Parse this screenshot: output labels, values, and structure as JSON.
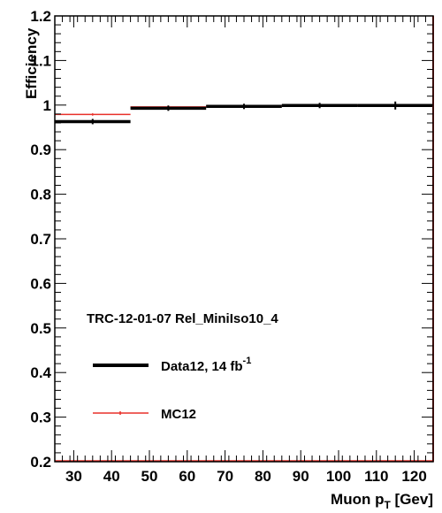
{
  "chart_data": {
    "type": "line",
    "plot_style": "binned-step-with-error-bars",
    "xlabel": "Muon p",
    "xlabel_sub": "T",
    "xlabel_unit": " [Gev]",
    "ylabel": "Efficiency",
    "xlim": [
      25,
      125
    ],
    "ylim": [
      0.2,
      1.2
    ],
    "x_ticks": [
      30,
      40,
      50,
      60,
      70,
      80,
      90,
      100,
      110,
      120
    ],
    "y_ticks": [
      0.2,
      0.3,
      0.4,
      0.5,
      0.6,
      0.7,
      0.8,
      0.9,
      1,
      1.1,
      1.2
    ],
    "y_tick_labels": [
      "0.2",
      "0.3",
      "0.4",
      "0.5",
      "0.6",
      "0.7",
      "0.8",
      "0.9",
      "1",
      "1.1",
      "1.2"
    ],
    "annotation": "TRC-12-01-07 Rel_MiniIso10_4",
    "legend_position": "bottom-left",
    "series": [
      {
        "name": "Data12, 14 fb",
        "name_sup": "-1",
        "color": "#000000",
        "bins": [
          {
            "x_low": 25,
            "x_high": 45,
            "value": 0.963,
            "error": 0.002
          },
          {
            "x_low": 45,
            "x_high": 65,
            "value": 0.993,
            "error": 0.002
          },
          {
            "x_low": 65,
            "x_high": 85,
            "value": 0.997,
            "error": 0.003
          },
          {
            "x_low": 85,
            "x_high": 105,
            "value": 0.999,
            "error": 0.005
          },
          {
            "x_low": 105,
            "x_high": 125,
            "value": 0.999,
            "error": 0.009
          }
        ]
      },
      {
        "name": "MC12",
        "color": "#e8302a",
        "bins": [
          {
            "x_low": 25,
            "x_high": 45,
            "value": 0.979,
            "error": 0.001
          },
          {
            "x_low": 45,
            "x_high": 65,
            "value": 0.996,
            "error": 0.001
          },
          {
            "x_low": 65,
            "x_high": 85,
            "value": 0.998,
            "error": 0.001
          },
          {
            "x_low": 85,
            "x_high": 105,
            "value": 0.999,
            "error": 0.001
          },
          {
            "x_low": 105,
            "x_high": 125,
            "value": 0.999,
            "error": 0.001
          }
        ]
      }
    ]
  }
}
